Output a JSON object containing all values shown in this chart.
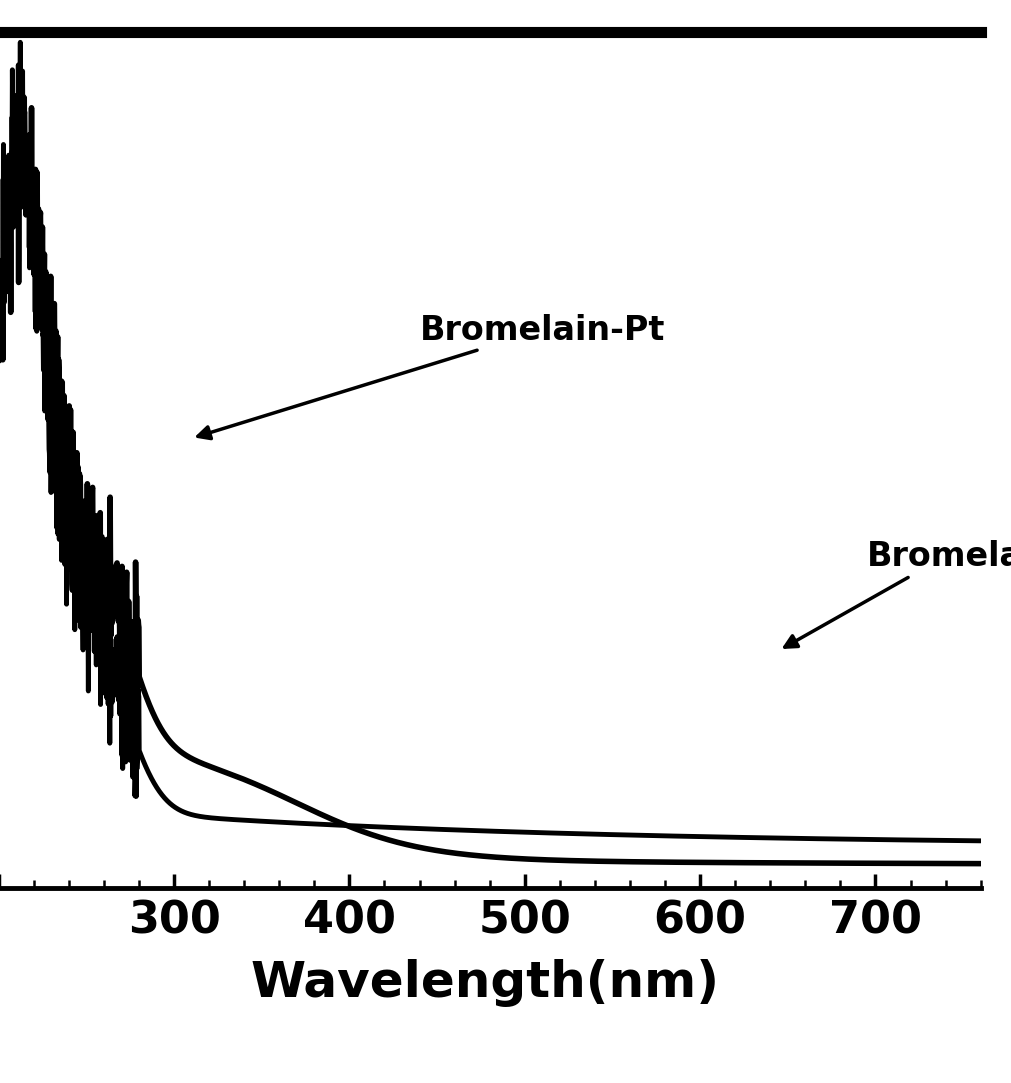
{
  "title": "",
  "xlabel": "Wavelength(nm)",
  "ylabel": "",
  "xlim": [
    195,
    760
  ],
  "ylim": [
    -0.02,
    1.15
  ],
  "background_color": "#ffffff",
  "line_color": "#000000",
  "label_bromelain_pt": "Bromelain-Pt",
  "label_bromelain": "Bromela",
  "xlabel_fontsize": 36,
  "xtick_fontsize": 32,
  "annotation_fontsize": 24,
  "linewidth_pt": 3.5,
  "linewidth_brom": 4.0,
  "top_bar_height": 0.022
}
